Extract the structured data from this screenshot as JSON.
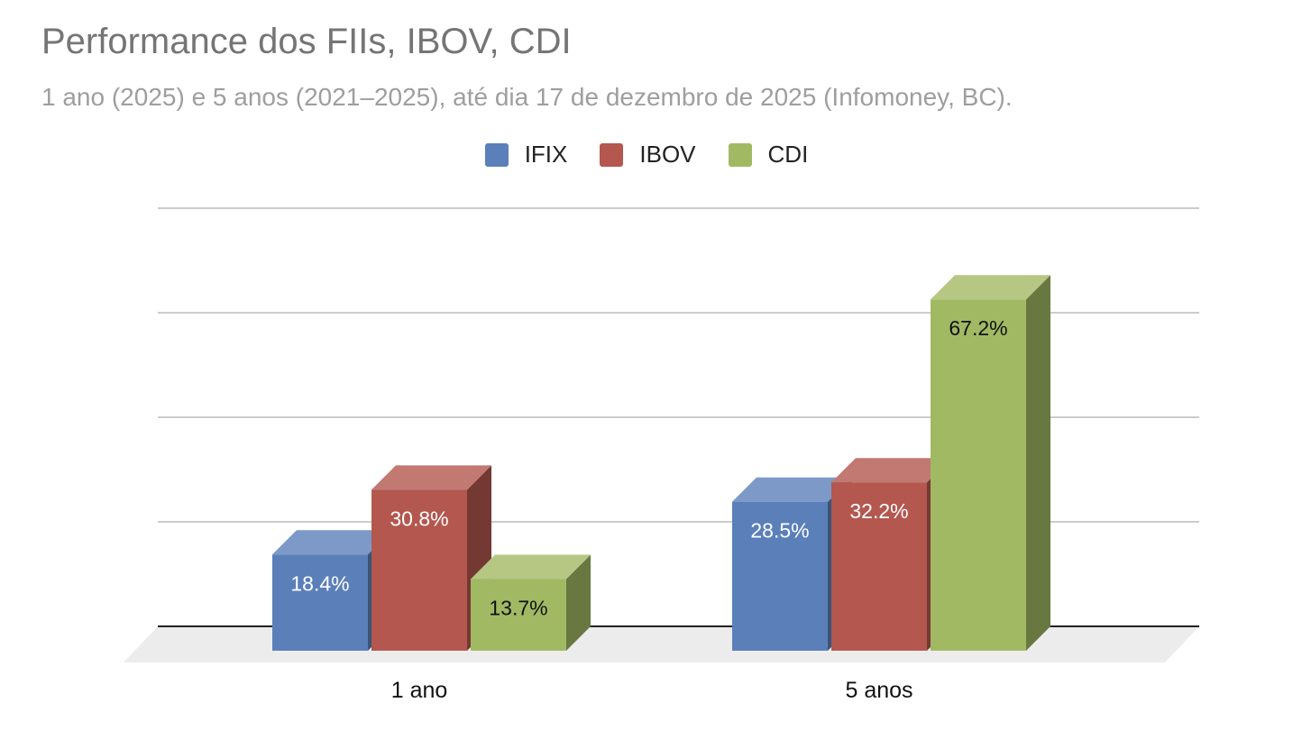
{
  "chart_data": {
    "type": "bar",
    "title": "Performance dos FIIs, IBOV, CDI",
    "subtitle": "1 ano (2025) e 5 anos (2021–2025), até dia 17 de dezembro de 2025 (Infomoney, BC).",
    "categories": [
      "1 ano",
      "5 anos"
    ],
    "series": [
      {
        "name": "IFIX",
        "values": [
          18.4,
          28.5
        ],
        "labels": [
          "18.4%",
          "28.5%"
        ],
        "color": "#5b7fb9"
      },
      {
        "name": "IBOV",
        "values": [
          30.8,
          32.2
        ],
        "labels": [
          "30.8%",
          "32.2%"
        ],
        "color": "#b3574f"
      },
      {
        "name": "CDI",
        "values": [
          13.7,
          67.2
        ],
        "labels": [
          "13.7%",
          "67.2%"
        ],
        "color": "#a2b964"
      }
    ],
    "ylim": [
      0,
      80
    ],
    "xlabel": "",
    "ylabel": "",
    "grid": true,
    "legend": "top-center"
  }
}
